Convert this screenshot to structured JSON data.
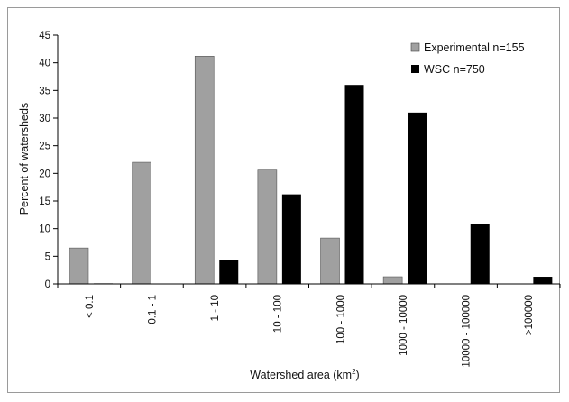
{
  "chart_data": {
    "type": "bar",
    "title": "",
    "xlabel": "Watershed area (km",
    "xlabel_sup": "2",
    "xlabel_end": ")",
    "ylabel": "Percent of watersheds",
    "ylim": [
      0,
      45
    ],
    "yticks": [
      "0",
      "5",
      "10",
      "15",
      "20",
      "25",
      "30",
      "35",
      "40",
      "45"
    ],
    "categories": [
      "< 0.1",
      "0.1 - 1",
      "1 - 10",
      "10 - 100",
      "100 - 1000",
      "1000 - 10000",
      "10000 - 100000",
      ">100000"
    ],
    "series": [
      {
        "name": "Experimental n=155",
        "color": "#a0a0a0",
        "values": [
          6.5,
          22,
          41.2,
          20.6,
          8.3,
          1.3,
          0,
          0
        ]
      },
      {
        "name": "WSC n=750",
        "color": "#000000",
        "values": [
          0.1,
          0,
          4.4,
          16.2,
          36,
          31,
          10.8,
          1.3
        ]
      }
    ],
    "legend_position": "top-right",
    "grid": false
  }
}
